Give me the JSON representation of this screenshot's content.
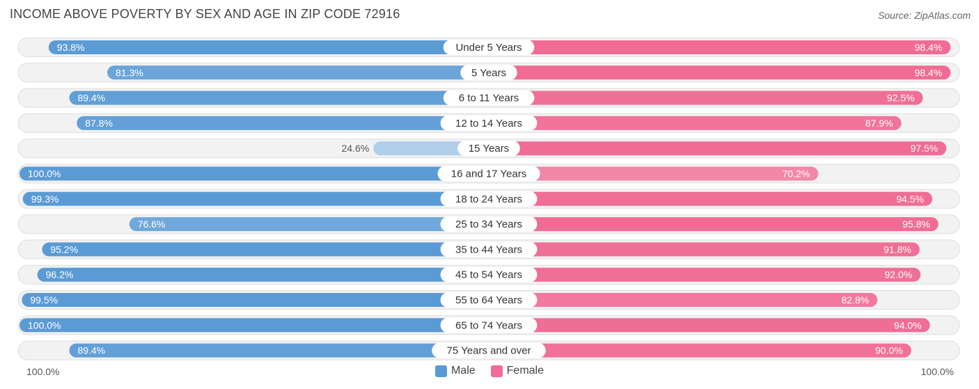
{
  "chart_data": {
    "type": "bar",
    "orientation": "horizontal-diverging",
    "title": "INCOME ABOVE POVERTY BY SEX AND AGE IN ZIP CODE 72916",
    "source": "Source: ZipAtlas.com",
    "categories": [
      "Under 5 Years",
      "5 Years",
      "6 to 11 Years",
      "12 to 14 Years",
      "15 Years",
      "16 and 17 Years",
      "18 to 24 Years",
      "25 to 34 Years",
      "35 to 44 Years",
      "45 to 54 Years",
      "55 to 64 Years",
      "65 to 74 Years",
      "75 Years and over"
    ],
    "series": [
      {
        "name": "Male",
        "color": "#5b9bd5",
        "values": [
          93.8,
          81.3,
          89.4,
          87.8,
          24.6,
          100.0,
          99.3,
          76.6,
          95.2,
          96.2,
          99.5,
          100.0,
          89.4
        ]
      },
      {
        "name": "Female",
        "color": "#f06c95",
        "values": [
          98.4,
          98.4,
          92.5,
          87.9,
          97.5,
          70.2,
          94.5,
          95.8,
          91.8,
          92.0,
          82.8,
          94.0,
          90.0
        ]
      }
    ],
    "xlim": [
      0,
      100
    ],
    "axis_left_label": "100.0%",
    "axis_right_label": "100.0%",
    "legend": [
      "Male",
      "Female"
    ],
    "value_suffix": "%"
  }
}
